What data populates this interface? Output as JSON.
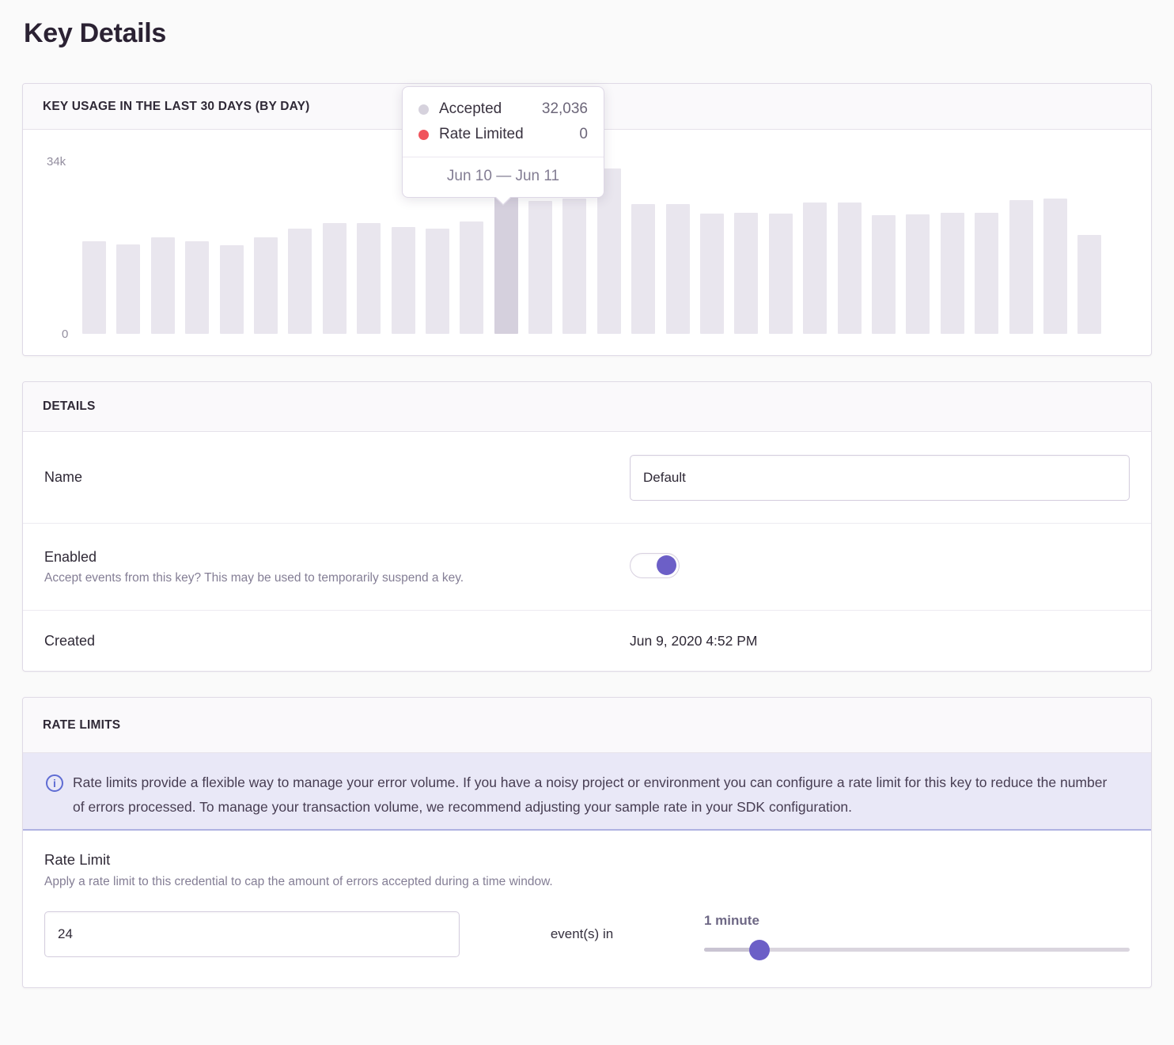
{
  "page": {
    "title": "Key Details"
  },
  "colors": {
    "accent_purple": "#6c5fc7",
    "bar": "#e9e6ee",
    "bar_hovered": "#d5d0dd",
    "accepted_dot": "#d6d2dd",
    "rate_limited_dot": "#f0545c",
    "info_icon": "#5f6cd3",
    "alert_bg": "#e9e8f7",
    "alert_border": "#afb2e2"
  },
  "usage_card": {
    "header": "KEY USAGE IN THE LAST 30 DAYS (BY DAY)",
    "y_axis": {
      "top": "34k",
      "bottom": "0"
    },
    "tooltip": {
      "series": [
        {
          "name": "Accepted",
          "value": "32,036",
          "dot_color": "#d6d2dd"
        },
        {
          "name": "Rate Limited",
          "value": "0",
          "dot_color": "#f0545c"
        }
      ],
      "date_range": "Jun 10 — Jun 11"
    }
  },
  "chart_data": {
    "type": "bar",
    "title": "KEY USAGE IN THE LAST 30 DAYS (BY DAY)",
    "x_unit": "day",
    "n_bars": 30,
    "ylim": [
      0,
      34000
    ],
    "ytick_labels": [
      "0",
      "34k"
    ],
    "grid": false,
    "legend_position": "tooltip",
    "hovered_index": 12,
    "hovered_range_label": "Jun 10 — Jun 11",
    "series": [
      {
        "name": "Accepted",
        "values": [
          18500,
          17800,
          19300,
          18500,
          17700,
          19300,
          21100,
          22200,
          22100,
          21300,
          21100,
          22400,
          32036,
          26500,
          27000,
          33000,
          26000,
          26000,
          24000,
          24200,
          24000,
          26300,
          26300,
          23700,
          23900,
          24200,
          24200,
          26800,
          27000,
          19800
        ]
      },
      {
        "name": "Rate Limited",
        "values": [
          0,
          0,
          0,
          0,
          0,
          0,
          0,
          0,
          0,
          0,
          0,
          0,
          0,
          0,
          0,
          0,
          0,
          0,
          0,
          0,
          0,
          0,
          0,
          0,
          0,
          0,
          0,
          0,
          0,
          0
        ]
      }
    ]
  },
  "details_card": {
    "header": "DETAILS",
    "name_row": {
      "label": "Name",
      "value": "Default"
    },
    "enabled_row": {
      "label": "Enabled",
      "help": "Accept events from this key? This may be used to temporarily suspend a key.",
      "state": "on"
    },
    "created_row": {
      "label": "Created",
      "value": "Jun 9, 2020 4:52 PM"
    }
  },
  "rate_limits_card": {
    "header": "RATE LIMITS",
    "alert": {
      "icon": "info-icon",
      "text": "Rate limits provide a flexible way to manage your error volume. If you have a noisy project or environment you can configure a rate limit for this key to reduce the number of errors processed. To manage your transaction volume, we recommend adjusting your sample rate in your SDK configuration."
    },
    "rate_limit_row": {
      "label": "Rate Limit",
      "help": "Apply a rate limit to this credential to cap the amount of errors accepted during a time window.",
      "count_value": "24",
      "middle_text": "event(s) in",
      "window_label": "1 minute",
      "slider_position_pct": 13
    }
  }
}
